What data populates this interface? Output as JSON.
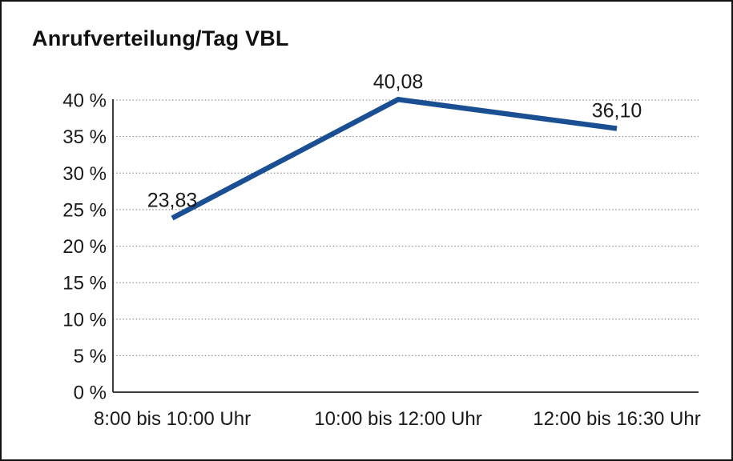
{
  "chart_data": {
    "type": "line",
    "title": "Anrufverteilung/Tag VBL",
    "categories": [
      "8:00 bis 10:00 Uhr",
      "10:00 bis 12:00 Uhr",
      "12:00 bis 16:30 Uhr"
    ],
    "values": [
      23.83,
      40.08,
      36.1
    ],
    "point_labels": [
      "23,83",
      "40,08",
      "36,10"
    ],
    "y_ticks": [
      0,
      5,
      10,
      15,
      20,
      25,
      30,
      35,
      40
    ],
    "y_tick_labels": [
      "0 %",
      "5 %",
      "10 %",
      "15 %",
      "20 %",
      "25 %",
      "30 %",
      "35 %",
      "40 %"
    ],
    "ylim": [
      0,
      40
    ],
    "xlabel": "",
    "ylabel": "",
    "grid": "horizontal-dotted",
    "legend": "none",
    "line_color": "#1A4F94",
    "background_color": "#ffffff",
    "border_color": "#111111"
  }
}
